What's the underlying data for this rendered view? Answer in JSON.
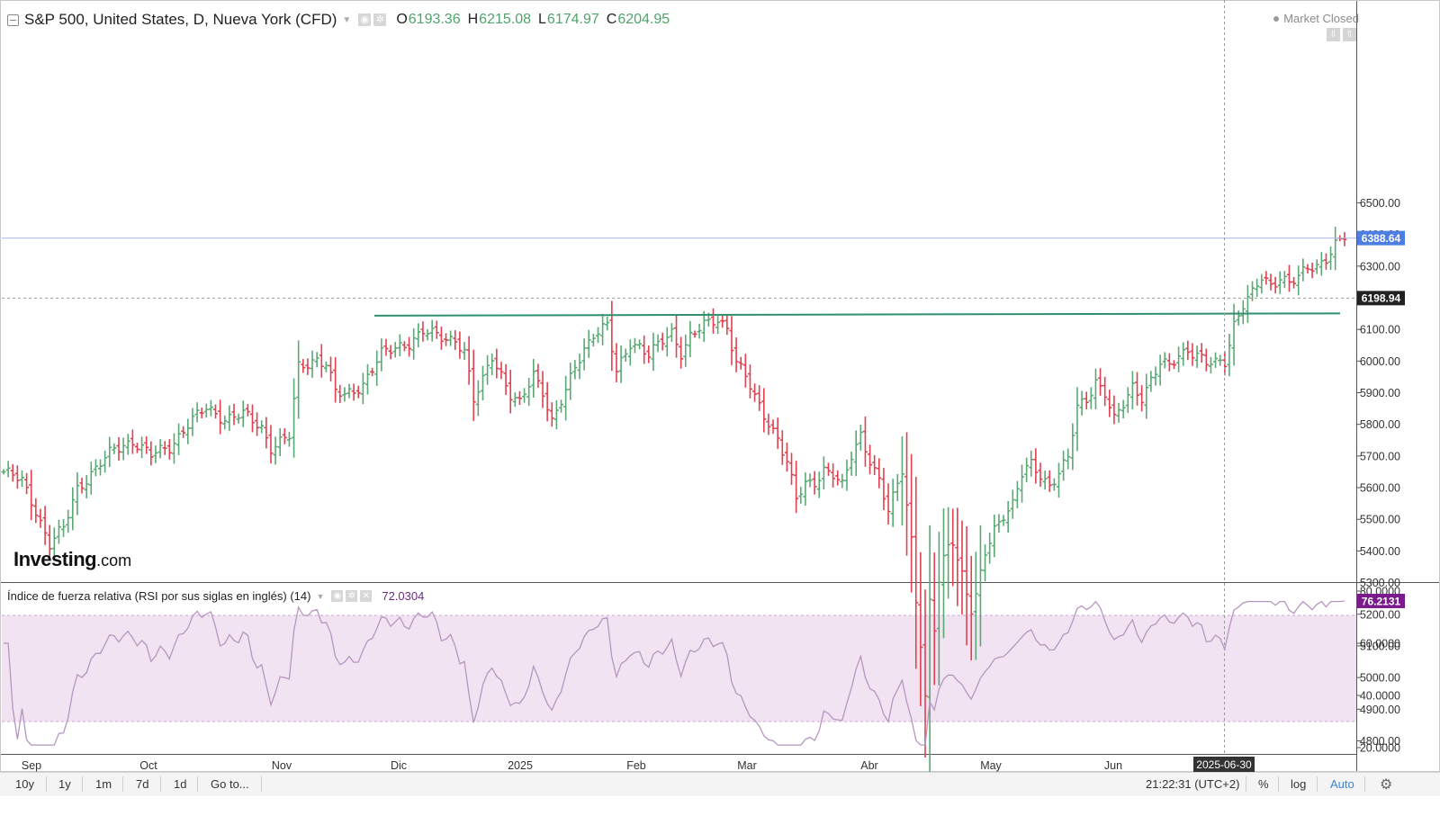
{
  "header": {
    "symbol": "S&P 500, United States, D, Nueva York (CFD)",
    "open_label": "O",
    "open": "6193.36",
    "high_label": "H",
    "high": "6215.08",
    "low_label": "L",
    "low": "6174.97",
    "close_label": "C",
    "close": "6204.95",
    "market_status": "Market Closed"
  },
  "logo": {
    "text": "Investing",
    "suffix": ".com"
  },
  "rsi": {
    "title": "Índice de fuerza relativa (RSI por sus siglas en inglés) (14)",
    "value": "72.0304"
  },
  "colors": {
    "up": "#5aa874",
    "down": "#e0404f",
    "resistance": "#2f8f6f",
    "price_tag": "#4c7ee3",
    "rsi_tag": "#7a1a8c",
    "rsi_band": "#f1e3f2",
    "rsi_line": "#b696bf"
  },
  "toolbar": {
    "ranges": [
      "10y",
      "1y",
      "1m",
      "7d",
      "1d"
    ],
    "goto": "Go to...",
    "time": "21:22:31 (UTC+2)",
    "percent": "%",
    "log": "log",
    "auto": "Auto",
    "settings_icon": "gear-icon"
  },
  "chart_data": [
    {
      "type": "ohlc",
      "x_ticks": [
        "Sep",
        "Oct",
        "Nov",
        "Dic",
        "2025",
        "Feb",
        "Mar",
        "Abr",
        "May",
        "Jun"
      ],
      "crosshair_date": "2025-06-30",
      "y_ticks": [
        "4800.00",
        "4900.00",
        "5000.00",
        "5100.00",
        "5200.00",
        "5300.00",
        "5400.00",
        "5500.00",
        "5600.00",
        "5700.00",
        "5800.00",
        "5900.00",
        "6000.00",
        "6100.00",
        "6200.00",
        "6300.00",
        "6400.00",
        "6500.00"
      ],
      "ylim": [
        4750,
        6550
      ],
      "last_price": "6388.64",
      "crosshair_price": "6198.94",
      "resistance_level": 6145,
      "anchors": [
        [
          0,
          5650
        ],
        [
          4,
          5620
        ],
        [
          7,
          5530
        ],
        [
          10,
          5420
        ],
        [
          13,
          5470
        ],
        [
          16,
          5600
        ],
        [
          20,
          5660
        ],
        [
          24,
          5720
        ],
        [
          28,
          5750
        ],
        [
          32,
          5700
        ],
        [
          36,
          5730
        ],
        [
          40,
          5800
        ],
        [
          44,
          5850
        ],
        [
          48,
          5820
        ],
        [
          52,
          5830
        ],
        [
          56,
          5790
        ],
        [
          58,
          5730
        ],
        [
          62,
          5760
        ],
        [
          64,
          5980
        ],
        [
          68,
          6010
        ],
        [
          70,
          5990
        ],
        [
          72,
          5900
        ],
        [
          74,
          5890
        ],
        [
          78,
          5930
        ],
        [
          82,
          6020
        ],
        [
          86,
          6050
        ],
        [
          88,
          6060
        ],
        [
          91,
          6090
        ],
        [
          94,
          6080
        ],
        [
          98,
          6070
        ],
        [
          100,
          6030
        ],
        [
          102,
          5870
        ],
        [
          104,
          5940
        ],
        [
          106,
          6020
        ],
        [
          108,
          5960
        ],
        [
          110,
          5890
        ],
        [
          112,
          5860
        ],
        [
          115,
          5960
        ],
        [
          117,
          5910
        ],
        [
          119,
          5810
        ],
        [
          122,
          5900
        ],
        [
          124,
          5980
        ],
        [
          126,
          6040
        ],
        [
          128,
          6090
        ],
        [
          131,
          6110
        ],
        [
          133,
          5960
        ],
        [
          136,
          6060
        ],
        [
          138,
          6050
        ],
        [
          140,
          6020
        ],
        [
          143,
          6060
        ],
        [
          145,
          6090
        ],
        [
          147,
          6030
        ],
        [
          149,
          6080
        ],
        [
          152,
          6110
        ],
        [
          155,
          6130
        ],
        [
          157,
          6110
        ],
        [
          159,
          6000
        ],
        [
          161,
          5950
        ],
        [
          163,
          5880
        ],
        [
          165,
          5830
        ],
        [
          168,
          5760
        ],
        [
          170,
          5680
        ],
        [
          172,
          5560
        ],
        [
          174,
          5610
        ],
        [
          176,
          5620
        ],
        [
          178,
          5660
        ],
        [
          180,
          5640
        ],
        [
          182,
          5600
        ],
        [
          184,
          5700
        ],
        [
          186,
          5770
        ],
        [
          188,
          5690
        ],
        [
          190,
          5620
        ],
        [
          192,
          5520
        ],
        [
          194,
          5610
        ],
        [
          195,
          5660
        ],
        [
          197,
          5440
        ],
        [
          198,
          5250
        ],
        [
          199,
          5110
        ],
        [
          200,
          4930
        ],
        [
          201,
          5230
        ],
        [
          202,
          5150
        ],
        [
          203,
          5300
        ],
        [
          204,
          5370
        ],
        [
          205,
          5420
        ],
        [
          206,
          5440
        ],
        [
          207,
          5380
        ],
        [
          208,
          5330
        ],
        [
          209,
          5270
        ],
        [
          210,
          5210
        ],
        [
          211,
          5250
        ],
        [
          213,
          5390
        ],
        [
          215,
          5470
        ],
        [
          217,
          5520
        ],
        [
          219,
          5550
        ],
        [
          221,
          5640
        ],
        [
          223,
          5670
        ],
        [
          225,
          5640
        ],
        [
          227,
          5610
        ],
        [
          229,
          5650
        ],
        [
          231,
          5690
        ],
        [
          233,
          5850
        ],
        [
          235,
          5880
        ],
        [
          237,
          5940
        ],
        [
          239,
          5900
        ],
        [
          241,
          5810
        ],
        [
          243,
          5860
        ],
        [
          245,
          5920
        ],
        [
          247,
          5890
        ],
        [
          249,
          5940
        ],
        [
          251,
          5990
        ],
        [
          253,
          5980
        ],
        [
          255,
          6020
        ],
        [
          257,
          6040
        ],
        [
          259,
          6020
        ],
        [
          261,
          5990
        ],
        [
          263,
          5990
        ],
        [
          265,
          6000
        ],
        [
          267,
          6120
        ],
        [
          269,
          6180
        ],
        [
          271,
          6210
        ],
        [
          273,
          6260
        ],
        [
          275,
          6240
        ],
        [
          277,
          6270
        ],
        [
          279,
          6250
        ],
        [
          281,
          6260
        ],
        [
          283,
          6290
        ],
        [
          285,
          6300
        ],
        [
          287,
          6330
        ],
        [
          289,
          6370
        ],
        [
          291,
          6390
        ]
      ]
    },
    {
      "type": "line",
      "name": "RSI (14)",
      "y_ticks": [
        "20.0000",
        "40.0000",
        "60.0000",
        "80.0000"
      ],
      "ylim": [
        16,
        82
      ],
      "overbought": 70,
      "oversold": 30,
      "last_value": "76.2131"
    }
  ]
}
